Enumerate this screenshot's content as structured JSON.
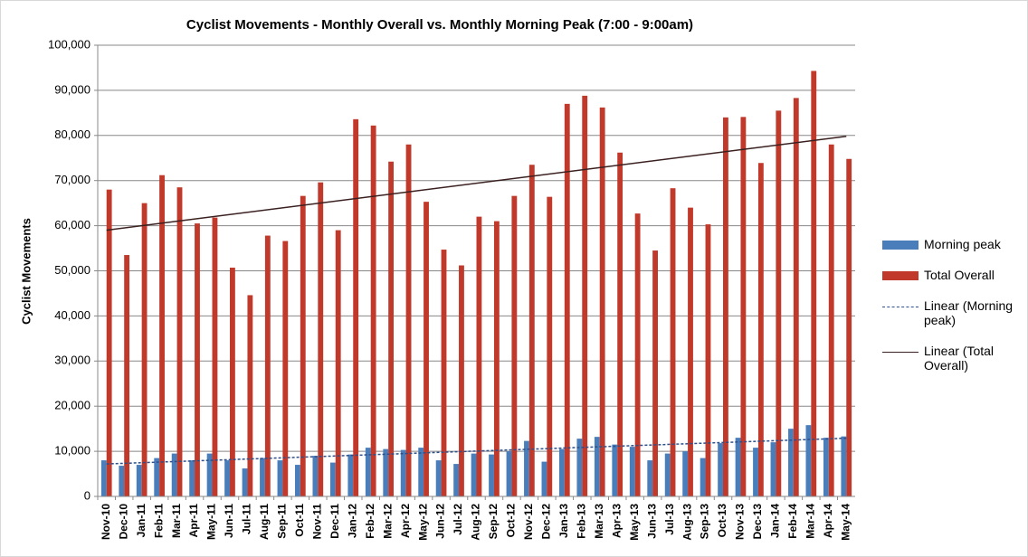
{
  "chart_data": {
    "type": "bar",
    "title": "Cyclist Movements - Monthly Overall vs. Monthly Morning  Peak (7:00 - 9:00am)",
    "y_label": "Cyclist Movements",
    "categories": [
      "Nov-10",
      "Dec-10",
      "Jan-11",
      "Feb-11",
      "Mar-11",
      "Apr-11",
      "May-11",
      "Jun-11",
      "Jul-11",
      "Aug-11",
      "Sep-11",
      "Oct-11",
      "Nov-11",
      "Dec-11",
      "Jan-12",
      "Feb-12",
      "Mar-12",
      "Apr-12",
      "May-12",
      "Jun-12",
      "Jul-12",
      "Aug-12",
      "Sep-12",
      "Oct-12",
      "Nov-12",
      "Dec-12",
      "Jan-13",
      "Feb-13",
      "Mar-13",
      "Apr-13",
      "May-13",
      "Jun-13",
      "Jul-13",
      "Aug-13",
      "Sep-13",
      "Oct-13",
      "Nov-13",
      "Dec-13",
      "Jan-14",
      "Feb-14",
      "Mar-14",
      "Apr-14",
      "May-14"
    ],
    "series": [
      {
        "name": "Morning peak",
        "color": "#4a7ebb",
        "values": [
          8000,
          6800,
          7000,
          8500,
          9500,
          8000,
          9500,
          8000,
          6200,
          8500,
          8000,
          7000,
          9000,
          7500,
          9300,
          10800,
          10500,
          10300,
          10800,
          8000,
          7200,
          9500,
          9300,
          10000,
          12300,
          7700,
          10500,
          12800,
          13200,
          11500,
          11000,
          8000,
          9500,
          10000,
          8500,
          11800,
          13000,
          10800,
          12000,
          15000,
          15800,
          13000,
          13300
        ]
      },
      {
        "name": "Total Overall",
        "color": "#c0392b",
        "values": [
          68000,
          53500,
          65000,
          71200,
          68500,
          60500,
          61800,
          50700,
          44600,
          57800,
          56600,
          66600,
          69600,
          59000,
          83600,
          82200,
          74200,
          78000,
          65300,
          54700,
          51200,
          62000,
          61000,
          66600,
          73500,
          66400,
          87000,
          88800,
          86200,
          76200,
          62700,
          54500,
          68300,
          64000,
          60300,
          84000,
          84100,
          73900,
          85500,
          88300,
          94300,
          78000,
          74800
        ]
      }
    ],
    "trendlines": [
      {
        "name": "Linear (Morning peak)",
        "color": "#2e4f8a",
        "dashed": true,
        "values": [
          7200,
          12900
        ]
      },
      {
        "name": "Linear (Total Overall)",
        "color": "#3a2020",
        "dashed": false,
        "values": [
          59000,
          79800
        ]
      }
    ],
    "ylim": [
      0,
      100000
    ],
    "yticks": [
      0,
      {
        "value": 10000,
        "label": "10,000"
      },
      {
        "value": 20000,
        "label": "20,000"
      },
      {
        "value": 30000,
        "label": "30,000"
      },
      {
        "value": 40000,
        "label": "40,000"
      },
      {
        "value": 50000,
        "label": "50,000"
      },
      {
        "value": 60000,
        "label": "60,000"
      },
      {
        "value": 70000,
        "label": "70,000"
      },
      {
        "value": 80000,
        "label": "80,000"
      },
      {
        "value": 90000,
        "label": "90,000"
      },
      {
        "value": 100000,
        "label": "100,000"
      }
    ],
    "grid": true
  }
}
